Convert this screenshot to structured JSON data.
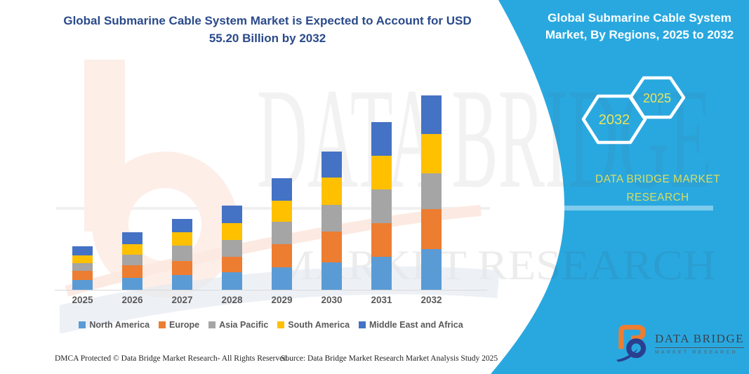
{
  "header": {
    "title_lines": [
      "Global Submarine Cable System Market is Expected to Account for USD",
      "55.20 Billion by 2032"
    ]
  },
  "panel": {
    "title_lines": [
      "Global Submarine Cable System",
      "Market, By Regions, 2025 to 2032"
    ],
    "hexagons": [
      {
        "label": "2032"
      },
      {
        "label": "2025"
      }
    ],
    "brand_lines": [
      "DATA BRIDGE MARKET",
      "RESEARCH"
    ],
    "background_color": "#29A8E0",
    "accent_text_color": "#E7E55E"
  },
  "watermark": {
    "line1": "DATA BRIDGE",
    "line2": "MARKET RESEARCH"
  },
  "chart_data": {
    "type": "bar",
    "stacked": true,
    "title": "Global Submarine Cable System Market is Expected to Account for USD 55.20 Billion by 2032",
    "unit": "USD Billion",
    "categories": [
      "2025",
      "2026",
      "2027",
      "2028",
      "2029",
      "2030",
      "2031",
      "2032"
    ],
    "series": [
      {
        "name": "North America",
        "color": "#5B9BD5",
        "values": [
          2.7,
          3.4,
          4.1,
          5.0,
          6.3,
          7.8,
          9.4,
          11.5
        ]
      },
      {
        "name": "Europe",
        "color": "#ED7D31",
        "values": [
          2.5,
          3.5,
          4.0,
          4.4,
          6.5,
          8.8,
          9.5,
          11.4
        ]
      },
      {
        "name": "Asia Pacific",
        "color": "#A5A5A5",
        "values": [
          2.2,
          2.9,
          4.4,
          4.8,
          6.3,
          7.5,
          9.5,
          10.2
        ]
      },
      {
        "name": "South America",
        "color": "#FFC000",
        "values": [
          2.1,
          2.9,
          3.8,
          4.7,
          6.0,
          7.8,
          9.6,
          11.2
        ]
      },
      {
        "name": "Middle East and Africa",
        "color": "#4472C4",
        "values": [
          2.5,
          3.3,
          3.8,
          5.0,
          6.4,
          7.4,
          9.5,
          10.9
        ]
      }
    ],
    "totals": [
      12.0,
      16.0,
      20.1,
      23.9,
      31.5,
      39.3,
      47.5,
      55.2
    ],
    "ylim": [
      0,
      60
    ],
    "grid": false,
    "y_axis_visible": false,
    "legend_position": "bottom"
  },
  "logo": {
    "name": "DATA BRIDGE",
    "subtitle": "MARKET RESEARCH"
  },
  "footer": {
    "dmca": "DMCA Protected © Data Bridge Market Research-  All Rights Reserved.",
    "source": "Source: Data Bridge Market Research  Market Analysis Study 2025"
  }
}
